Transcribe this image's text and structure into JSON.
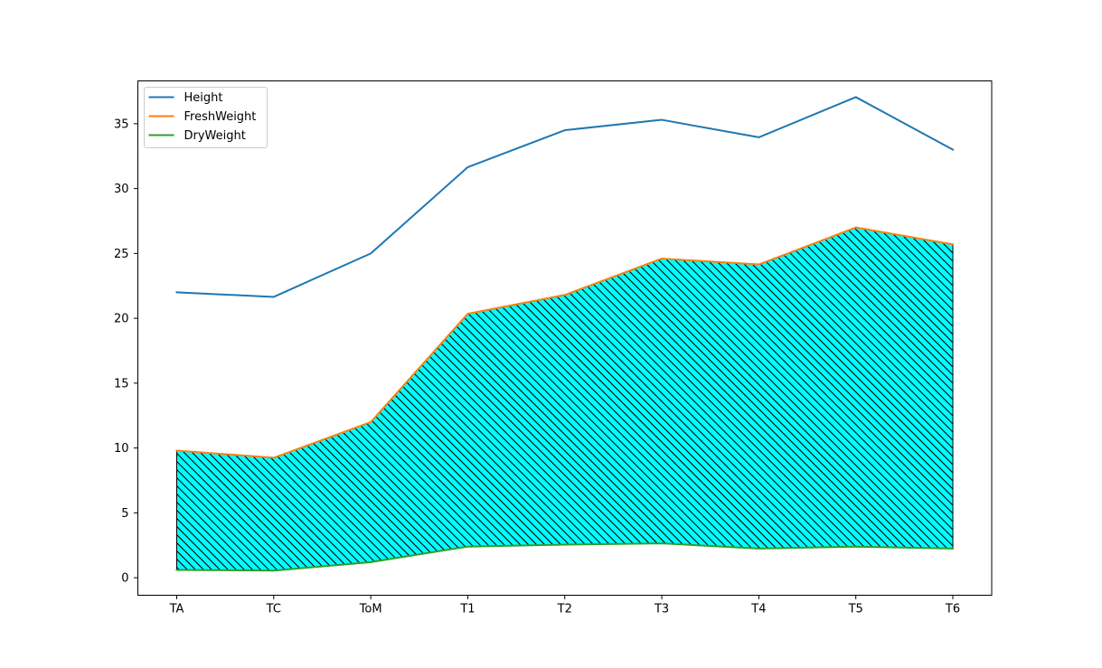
{
  "chart_data": {
    "type": "line",
    "title": "",
    "xlabel": "",
    "ylabel": "",
    "categories": [
      "TA",
      "TC",
      "ToM",
      "T1",
      "T2",
      "T3",
      "T4",
      "T5",
      "T6"
    ],
    "ylim": [
      -1.35,
      38.3
    ],
    "yticks": [
      0,
      5,
      10,
      15,
      20,
      25,
      30,
      35
    ],
    "grid": false,
    "legend_position": "top-left",
    "series": [
      {
        "name": "Height",
        "color": "#1f77b4",
        "values": [
          22.0,
          21.65,
          25.0,
          31.65,
          34.5,
          35.3,
          33.95,
          37.05,
          33.0
        ]
      },
      {
        "name": "FreshWeight",
        "color": "#ff7f0e",
        "values": [
          9.8,
          9.25,
          12.0,
          20.35,
          21.8,
          24.6,
          24.15,
          27.0,
          25.7
        ]
      },
      {
        "name": "DryWeight",
        "color": "#2ca02c",
        "values": [
          0.6,
          0.55,
          1.2,
          2.4,
          2.55,
          2.65,
          2.25,
          2.4,
          2.25
        ]
      }
    ],
    "fill_between": {
      "upper": "FreshWeight",
      "lower": "DryWeight",
      "color": "#00ffff",
      "hatch": "backslash",
      "hatch_color": "#000000"
    }
  }
}
